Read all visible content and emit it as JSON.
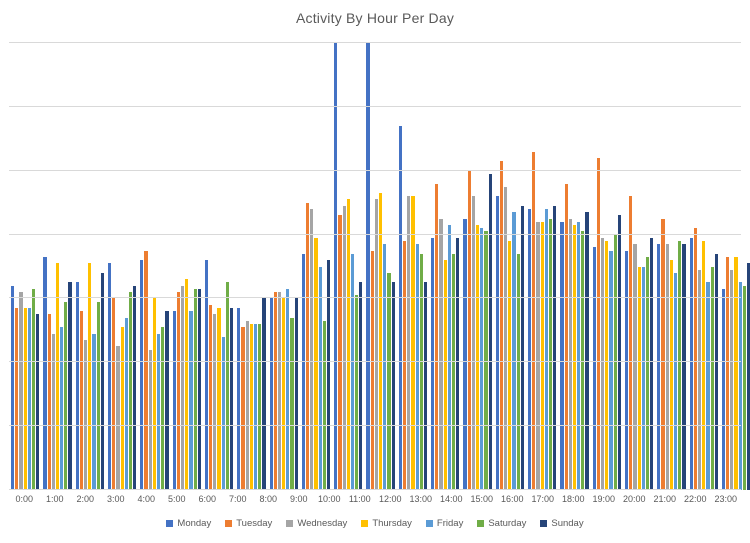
{
  "chart_data": {
    "type": "bar",
    "title": "Activity By Hour Per Day",
    "xlabel": "",
    "ylabel": "",
    "y_axis_tick_labels_visible": false,
    "ylim": [
      0,
      70
    ],
    "gridlines": "horizontal every 10 units, light gray",
    "legend_position": "bottom",
    "categories": [
      "0:00",
      "1:00",
      "2:00",
      "3:00",
      "4:00",
      "5:00",
      "6:00",
      "7:00",
      "8:00",
      "9:00",
      "10:00",
      "11:00",
      "12:00",
      "13:00",
      "14:00",
      "15:00",
      "16:00",
      "17:00",
      "18:00",
      "19:00",
      "20:00",
      "21:00",
      "22:00",
      "23:00"
    ],
    "series": [
      {
        "name": "Monday",
        "color": "#4472C4",
        "values": [
          32,
          36.5,
          32.5,
          35.5,
          36,
          28,
          36,
          28.5,
          30,
          37,
          70,
          70,
          57,
          39.5,
          42.5,
          46,
          44,
          42,
          38,
          37.5,
          38.5,
          39.5,
          31.5,
          32.5
        ]
      },
      {
        "name": "Tuesday",
        "color": "#ED7D31",
        "values": [
          28.5,
          27.5,
          28,
          30,
          37.5,
          31,
          29,
          25.5,
          31,
          45,
          43,
          37.5,
          39,
          48,
          50,
          51.5,
          53,
          48,
          52,
          46,
          42.5,
          41,
          36.5,
          27
        ]
      },
      {
        "name": "Wednesday",
        "color": "#A5A5A5",
        "values": [
          31,
          24.5,
          23.5,
          22.5,
          22,
          32,
          27.5,
          26.5,
          31,
          44,
          44.5,
          45.5,
          46,
          42.5,
          46,
          47.5,
          42,
          42.5,
          39.5,
          38.5,
          38.5,
          34.5,
          34.5,
          31
        ]
      },
      {
        "name": "Thursday",
        "color": "#FFC000",
        "values": [
          28.5,
          35.5,
          35.5,
          25.5,
          30,
          33,
          28.5,
          26,
          30,
          39.5,
          45.5,
          46.5,
          46,
          36,
          41.5,
          39,
          42,
          41.5,
          39,
          35,
          36,
          39,
          36.5,
          30.5
        ]
      },
      {
        "name": "Friday",
        "color": "#5B9BD5",
        "values": [
          28.5,
          25.5,
          24.5,
          27,
          24.5,
          28,
          24,
          26,
          31.5,
          35,
          37,
          38.5,
          38.5,
          41.5,
          41,
          43.5,
          44,
          42,
          37.5,
          35,
          34,
          32.5,
          32.5,
          31.5
        ]
      },
      {
        "name": "Saturday",
        "color": "#70AD47",
        "values": [
          31.5,
          29.5,
          29.5,
          31,
          25.5,
          31.5,
          32.5,
          26,
          27,
          26.5,
          30.5,
          34,
          37,
          37,
          40.5,
          37,
          42.5,
          40.5,
          40,
          36.5,
          39,
          35,
          32,
          28.5
        ]
      },
      {
        "name": "Sunday",
        "color": "#264478",
        "values": [
          27.5,
          32.5,
          34,
          32,
          28,
          31.5,
          28.5,
          30,
          30,
          36,
          32.5,
          32.5,
          32.5,
          39.5,
          49.5,
          44.5,
          44.5,
          43.5,
          43,
          39.5,
          38.5,
          37,
          35.5,
          32
        ]
      }
    ],
    "clipped_bars": [
      {
        "series": "Monday",
        "category": "10:00"
      },
      {
        "series": "Monday",
        "category": "11:00"
      }
    ],
    "note": "Values are in relative units (one gridline interval = 10); no y-axis tick labels are shown in the chart. Monday 10:00 and 11:00 bars are clipped at the top of the plot area."
  },
  "colors": {
    "gridline": "#d9d9d9",
    "text": "#595959",
    "background": "#ffffff"
  }
}
